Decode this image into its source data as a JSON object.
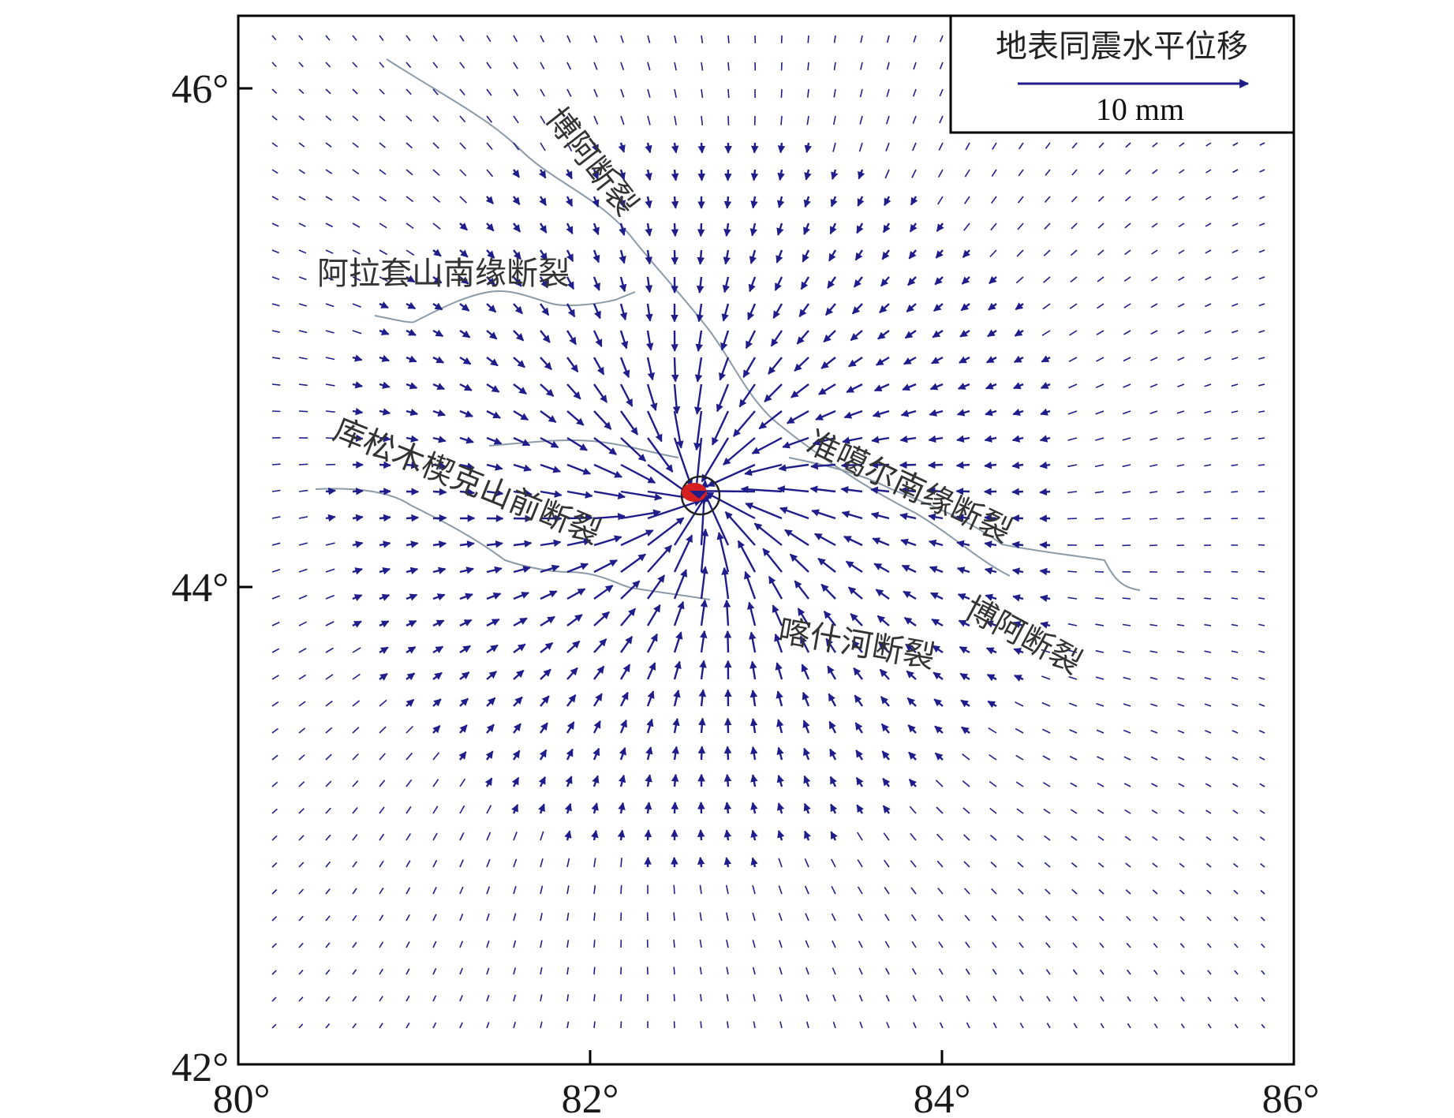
{
  "map": {
    "x_ticks": [
      "80°",
      "82°",
      "84°",
      "86°"
    ],
    "y_ticks": [
      "42°",
      "44°",
      "46°"
    ],
    "colors": {
      "vector": "#1f1d8a",
      "fault": "#8a9aa8",
      "frame": "#000000",
      "epicenter": "#d62020"
    }
  },
  "legend": {
    "title": "地表同震水平位移",
    "scale_label": "10 mm"
  },
  "faults": [
    {
      "id": "boa-north",
      "label": "博阿断裂"
    },
    {
      "id": "alatao",
      "label": "阿拉套山南缘断裂"
    },
    {
      "id": "kusongmu",
      "label": "库松木楔克山前断裂"
    },
    {
      "id": "junggar",
      "label": "准噶尔南缘断裂"
    },
    {
      "id": "boa-south",
      "label": "博阿断裂"
    },
    {
      "id": "kashi",
      "label": "喀什河断裂"
    }
  ],
  "epicenter": {
    "icon": "epicenter-icon"
  }
}
